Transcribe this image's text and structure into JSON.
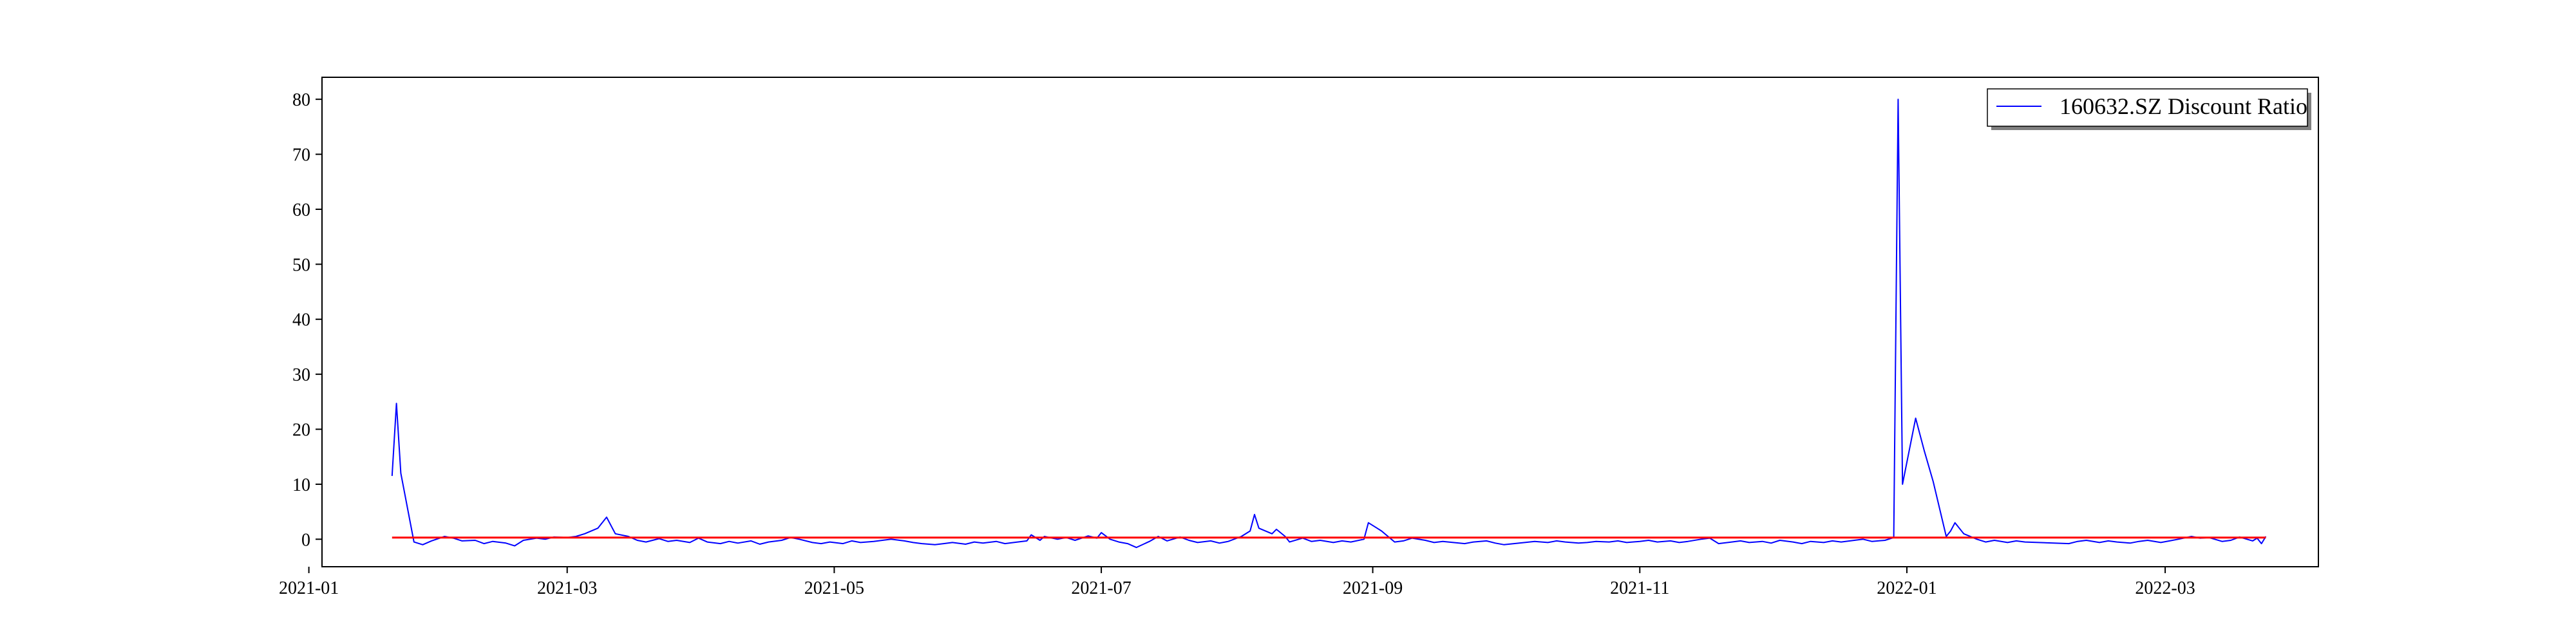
{
  "chart_data": {
    "type": "line",
    "title": "",
    "xlabel": "",
    "ylabel": "",
    "xlim": [
      "2021-01-04",
      "2022-04-05"
    ],
    "ylim": [
      -5,
      84
    ],
    "x_ticks": [
      "2021-01",
      "2021-03",
      "2021-05",
      "2021-07",
      "2021-09",
      "2021-11",
      "2022-01",
      "2022-03"
    ],
    "y_ticks": [
      0,
      10,
      20,
      30,
      40,
      50,
      60,
      70,
      80
    ],
    "grid": false,
    "legend": {
      "position": "top-right"
    },
    "series": [
      {
        "name": "160632.SZ Discount Ratio",
        "color": "#0000ff",
        "points": [
          [
            "2021-01-20",
            11.5
          ],
          [
            "2021-01-21",
            24.7
          ],
          [
            "2021-01-22",
            12.0
          ],
          [
            "2021-01-25",
            -0.5
          ],
          [
            "2021-01-27",
            -1.0
          ],
          [
            "2021-01-29",
            -0.3
          ],
          [
            "2021-02-01",
            0.5
          ],
          [
            "2021-02-03",
            0.2
          ],
          [
            "2021-02-05",
            -0.3
          ],
          [
            "2021-02-08",
            -0.2
          ],
          [
            "2021-02-10",
            -0.8
          ],
          [
            "2021-02-12",
            -0.4
          ],
          [
            "2021-02-15",
            -0.7
          ],
          [
            "2021-02-17",
            -1.2
          ],
          [
            "2021-02-19",
            -0.2
          ],
          [
            "2021-02-22",
            0.2
          ],
          [
            "2021-02-24",
            0.0
          ],
          [
            "2021-02-26",
            0.4
          ],
          [
            "2021-03-01",
            0.3
          ],
          [
            "2021-03-03",
            0.5
          ],
          [
            "2021-03-05",
            1.0
          ],
          [
            "2021-03-08",
            2.0
          ],
          [
            "2021-03-10",
            4.0
          ],
          [
            "2021-03-12",
            1.0
          ],
          [
            "2021-03-15",
            0.5
          ],
          [
            "2021-03-17",
            -0.2
          ],
          [
            "2021-03-19",
            -0.5
          ],
          [
            "2021-03-22",
            0.1
          ],
          [
            "2021-03-24",
            -0.4
          ],
          [
            "2021-03-26",
            -0.2
          ],
          [
            "2021-03-29",
            -0.6
          ],
          [
            "2021-03-31",
            0.2
          ],
          [
            "2021-04-02",
            -0.5
          ],
          [
            "2021-04-05",
            -0.8
          ],
          [
            "2021-04-07",
            -0.4
          ],
          [
            "2021-04-09",
            -0.7
          ],
          [
            "2021-04-12",
            -0.3
          ],
          [
            "2021-04-14",
            -0.9
          ],
          [
            "2021-04-16",
            -0.5
          ],
          [
            "2021-04-19",
            -0.2
          ],
          [
            "2021-04-21",
            0.3
          ],
          [
            "2021-04-23",
            0.0
          ],
          [
            "2021-04-26",
            -0.6
          ],
          [
            "2021-04-28",
            -0.8
          ],
          [
            "2021-04-30",
            -0.5
          ],
          [
            "2021-05-03",
            -0.8
          ],
          [
            "2021-05-05",
            -0.3
          ],
          [
            "2021-05-07",
            -0.6
          ],
          [
            "2021-05-10",
            -0.4
          ],
          [
            "2021-05-12",
            -0.2
          ],
          [
            "2021-05-14",
            0.0
          ],
          [
            "2021-05-17",
            -0.3
          ],
          [
            "2021-05-19",
            -0.6
          ],
          [
            "2021-05-21",
            -0.8
          ],
          [
            "2021-05-24",
            -1.0
          ],
          [
            "2021-05-26",
            -0.8
          ],
          [
            "2021-05-28",
            -0.6
          ],
          [
            "2021-05-31",
            -0.9
          ],
          [
            "2021-06-02",
            -0.5
          ],
          [
            "2021-06-04",
            -0.7
          ],
          [
            "2021-06-07",
            -0.4
          ],
          [
            "2021-06-09",
            -0.8
          ],
          [
            "2021-06-11",
            -0.6
          ],
          [
            "2021-06-14",
            -0.3
          ],
          [
            "2021-06-15",
            0.8
          ],
          [
            "2021-06-17",
            -0.2
          ],
          [
            "2021-06-18",
            0.5
          ],
          [
            "2021-06-21",
            0.0
          ],
          [
            "2021-06-23",
            0.3
          ],
          [
            "2021-06-25",
            -0.2
          ],
          [
            "2021-06-28",
            0.6
          ],
          [
            "2021-06-30",
            0.2
          ],
          [
            "2021-07-01",
            1.2
          ],
          [
            "2021-07-03",
            0.0
          ],
          [
            "2021-07-05",
            -0.5
          ],
          [
            "2021-07-07",
            -0.8
          ],
          [
            "2021-07-09",
            -1.5
          ],
          [
            "2021-07-12",
            -0.4
          ],
          [
            "2021-07-14",
            0.5
          ],
          [
            "2021-07-16",
            -0.3
          ],
          [
            "2021-07-19",
            0.4
          ],
          [
            "2021-07-21",
            -0.2
          ],
          [
            "2021-07-23",
            -0.6
          ],
          [
            "2021-07-26",
            -0.3
          ],
          [
            "2021-07-28",
            -0.7
          ],
          [
            "2021-07-30",
            -0.4
          ],
          [
            "2021-08-02",
            0.5
          ],
          [
            "2021-08-04",
            1.5
          ],
          [
            "2021-08-05",
            4.5
          ],
          [
            "2021-08-06",
            2.0
          ],
          [
            "2021-08-09",
            1.0
          ],
          [
            "2021-08-10",
            1.8
          ],
          [
            "2021-08-12",
            0.5
          ],
          [
            "2021-08-13",
            -0.5
          ],
          [
            "2021-08-16",
            0.2
          ],
          [
            "2021-08-18",
            -0.4
          ],
          [
            "2021-08-20",
            -0.2
          ],
          [
            "2021-08-23",
            -0.6
          ],
          [
            "2021-08-25",
            -0.3
          ],
          [
            "2021-08-27",
            -0.5
          ],
          [
            "2021-08-30",
            0.0
          ],
          [
            "2021-08-31",
            3.0
          ],
          [
            "2021-09-02",
            2.0
          ],
          [
            "2021-09-03",
            1.5
          ],
          [
            "2021-09-06",
            -0.5
          ],
          [
            "2021-09-08",
            -0.3
          ],
          [
            "2021-09-10",
            0.2
          ],
          [
            "2021-09-13",
            -0.2
          ],
          [
            "2021-09-15",
            -0.6
          ],
          [
            "2021-09-17",
            -0.4
          ],
          [
            "2021-09-22",
            -0.8
          ],
          [
            "2021-09-24",
            -0.5
          ],
          [
            "2021-09-27",
            -0.3
          ],
          [
            "2021-09-29",
            -0.7
          ],
          [
            "2021-10-01",
            -1.0
          ],
          [
            "2021-10-08",
            -0.4
          ],
          [
            "2021-10-11",
            -0.6
          ],
          [
            "2021-10-13",
            -0.3
          ],
          [
            "2021-10-15",
            -0.5
          ],
          [
            "2021-10-18",
            -0.7
          ],
          [
            "2021-10-20",
            -0.6
          ],
          [
            "2021-10-22",
            -0.4
          ],
          [
            "2021-10-25",
            -0.5
          ],
          [
            "2021-10-27",
            -0.3
          ],
          [
            "2021-10-29",
            -0.6
          ],
          [
            "2021-11-01",
            -0.4
          ],
          [
            "2021-11-03",
            -0.2
          ],
          [
            "2021-11-05",
            -0.5
          ],
          [
            "2021-11-08",
            -0.3
          ],
          [
            "2021-11-10",
            -0.6
          ],
          [
            "2021-11-12",
            -0.4
          ],
          [
            "2021-11-15",
            0.0
          ],
          [
            "2021-11-17",
            0.2
          ],
          [
            "2021-11-19",
            -0.8
          ],
          [
            "2021-11-22",
            -0.5
          ],
          [
            "2021-11-24",
            -0.3
          ],
          [
            "2021-11-26",
            -0.6
          ],
          [
            "2021-11-29",
            -0.4
          ],
          [
            "2021-12-01",
            -0.7
          ],
          [
            "2021-12-03",
            -0.2
          ],
          [
            "2021-12-06",
            -0.5
          ],
          [
            "2021-12-08",
            -0.8
          ],
          [
            "2021-12-10",
            -0.4
          ],
          [
            "2021-12-13",
            -0.6
          ],
          [
            "2021-12-15",
            -0.3
          ],
          [
            "2021-12-17",
            -0.5
          ],
          [
            "2021-12-20",
            -0.2
          ],
          [
            "2021-12-22",
            0.0
          ],
          [
            "2021-12-24",
            -0.4
          ],
          [
            "2021-12-27",
            -0.2
          ],
          [
            "2021-12-29",
            0.3
          ],
          [
            "2021-12-30",
            80.0
          ],
          [
            "2021-12-31",
            10.0
          ],
          [
            "2022-01-03",
            22.0
          ],
          [
            "2022-01-04",
            19.0
          ],
          [
            "2022-01-05",
            16.0
          ],
          [
            "2022-01-07",
            10.5
          ],
          [
            "2022-01-10",
            0.5
          ],
          [
            "2022-01-11",
            1.5
          ],
          [
            "2022-01-12",
            3.0
          ],
          [
            "2022-01-14",
            1.0
          ],
          [
            "2022-01-17",
            0.0
          ],
          [
            "2022-01-19",
            -0.5
          ],
          [
            "2022-01-21",
            -0.2
          ],
          [
            "2022-01-24",
            -0.6
          ],
          [
            "2022-01-26",
            -0.3
          ],
          [
            "2022-01-28",
            -0.5
          ],
          [
            "2022-02-07",
            -0.8
          ],
          [
            "2022-02-09",
            -0.4
          ],
          [
            "2022-02-11",
            -0.2
          ],
          [
            "2022-02-14",
            -0.6
          ],
          [
            "2022-02-16",
            -0.3
          ],
          [
            "2022-02-18",
            -0.5
          ],
          [
            "2022-02-21",
            -0.7
          ],
          [
            "2022-02-23",
            -0.4
          ],
          [
            "2022-02-25",
            -0.2
          ],
          [
            "2022-02-28",
            -0.6
          ],
          [
            "2022-03-02",
            -0.3
          ],
          [
            "2022-03-04",
            0.0
          ],
          [
            "2022-03-07",
            0.5
          ],
          [
            "2022-03-09",
            0.2
          ],
          [
            "2022-03-11",
            0.3
          ],
          [
            "2022-03-14",
            -0.4
          ],
          [
            "2022-03-16",
            -0.2
          ],
          [
            "2022-03-18",
            0.4
          ],
          [
            "2022-03-21",
            -0.3
          ],
          [
            "2022-03-22",
            0.2
          ],
          [
            "2022-03-23",
            -0.8
          ],
          [
            "2022-03-24",
            0.5
          ]
        ]
      },
      {
        "color": "#ff0000",
        "points": [
          [
            "2021-01-20",
            0.3
          ],
          [
            "2022-03-24",
            0.3
          ]
        ]
      }
    ]
  }
}
